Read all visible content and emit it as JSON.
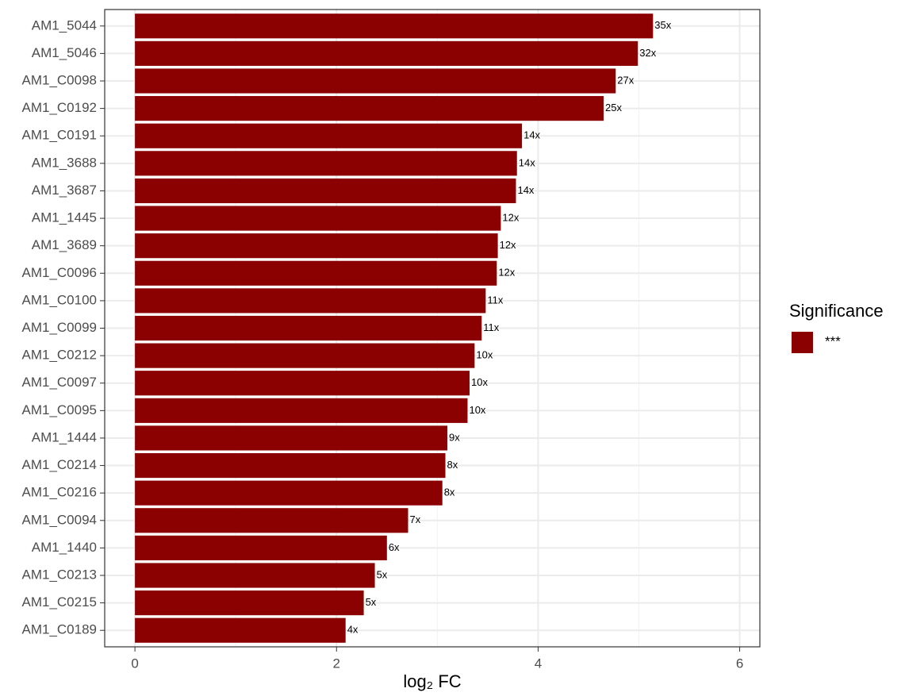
{
  "chart_data": {
    "type": "barh",
    "categories": [
      "AM1_5044",
      "AM1_5046",
      "AM1_C0098",
      "AM1_C0192",
      "AM1_C0191",
      "AM1_3688",
      "AM1_3687",
      "AM1_1445",
      "AM1_3689",
      "AM1_C0096",
      "AM1_C0100",
      "AM1_C0099",
      "AM1_C0212",
      "AM1_C0097",
      "AM1_C0095",
      "AM1_1444",
      "AM1_C0214",
      "AM1_C0216",
      "AM1_C0094",
      "AM1_1440",
      "AM1_C0213",
      "AM1_C0215",
      "AM1_C0189"
    ],
    "series": [
      {
        "name": "***",
        "color": "#8b0000",
        "values": [
          5.14,
          4.99,
          4.77,
          4.65,
          3.84,
          3.79,
          3.78,
          3.63,
          3.6,
          3.59,
          3.48,
          3.44,
          3.37,
          3.32,
          3.3,
          3.1,
          3.08,
          3.05,
          2.71,
          2.5,
          2.38,
          2.27,
          2.09
        ],
        "value_labels": [
          "35x",
          "32x",
          "27x",
          "25x",
          "14x",
          "14x",
          "14x",
          "12x",
          "12x",
          "12x",
          "11x",
          "11x",
          "10x",
          "10x",
          "10x",
          "9x",
          "8x",
          "8x",
          "7x",
          "6x",
          "5x",
          "5x",
          "4x"
        ]
      }
    ],
    "x_label": "log₂ FC",
    "legend_title": "Significance",
    "xlim": [
      -0.3,
      6.2
    ],
    "xticks": [
      0,
      2,
      4,
      6
    ],
    "minor_xticks": [
      1,
      3,
      5
    ],
    "grid": true
  }
}
